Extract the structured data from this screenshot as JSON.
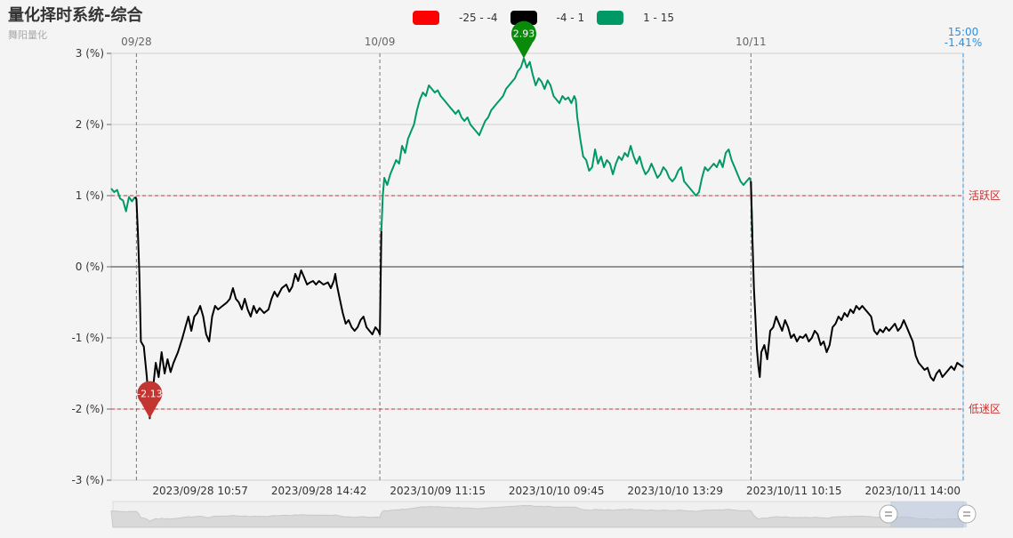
{
  "header": {
    "title": "量化择时系统-综合",
    "subtitle": "舞阳量化"
  },
  "legend": [
    {
      "label": "-25 - -4",
      "color": "#ff0000"
    },
    {
      "label": "-4 - 1",
      "color": "#000000"
    },
    {
      "label": "1 - 15",
      "color": "#009966"
    }
  ],
  "colors": {
    "positive": "#009966",
    "negative": "#000000",
    "marker_max": "#0a8a0a",
    "marker_min": "#c23531",
    "threshold": "#c23531",
    "current": "#2f8fdc"
  },
  "chart_data": {
    "type": "line",
    "title": "量化择时系统-综合",
    "subtitle": "舞阳量化",
    "ylim": [
      -3,
      3
    ],
    "y_ticks": [
      "3 (%)",
      "2 (%)",
      "1 (%)",
      "0 (%)",
      "-1 (%)",
      "-2 (%)",
      "-3 (%)"
    ],
    "x_tick_labels": [
      "2023/09/28 10:57",
      "2023/09/28 14:42",
      "2023/10/09 11:15",
      "2023/10/10 09:45",
      "2023/10/10 13:29",
      "2023/10/11 10:15",
      "2023/10/11 14:00"
    ],
    "day_labels": [
      "09/28",
      "10/09",
      "10/11"
    ],
    "current": {
      "time": "15:00",
      "value": "-1.41%"
    },
    "threshold_lines": [
      {
        "value": 1,
        "label": "活跃区"
      },
      {
        "value": -2,
        "label": "低迷区"
      }
    ],
    "markers": {
      "max": 2.93,
      "min": -2.13
    },
    "series_points": [
      [
        0,
        1.1
      ],
      [
        2,
        1.05
      ],
      [
        4,
        1.08
      ],
      [
        6,
        0.96
      ],
      [
        8,
        0.93
      ],
      [
        10,
        0.78
      ],
      [
        12,
        0.98
      ],
      [
        14,
        0.92
      ],
      [
        16,
        0.98
      ],
      [
        17,
        0.95
      ],
      [
        18,
        0.5
      ],
      [
        19,
        -0.1
      ],
      [
        20,
        -1.05
      ],
      [
        22,
        -1.12
      ],
      [
        24,
        -1.55
      ],
      [
        26,
        -2.13
      ],
      [
        28,
        -1.75
      ],
      [
        30,
        -1.35
      ],
      [
        32,
        -1.55
      ],
      [
        34,
        -1.2
      ],
      [
        36,
        -1.5
      ],
      [
        38,
        -1.3
      ],
      [
        40,
        -1.48
      ],
      [
        42,
        -1.35
      ],
      [
        45,
        -1.2
      ],
      [
        48,
        -1.0
      ],
      [
        50,
        -0.85
      ],
      [
        52,
        -0.7
      ],
      [
        54,
        -0.9
      ],
      [
        56,
        -0.7
      ],
      [
        58,
        -0.65
      ],
      [
        60,
        -0.55
      ],
      [
        62,
        -0.7
      ],
      [
        64,
        -0.95
      ],
      [
        66,
        -1.05
      ],
      [
        68,
        -0.7
      ],
      [
        70,
        -0.55
      ],
      [
        72,
        -0.6
      ],
      [
        75,
        -0.55
      ],
      [
        78,
        -0.5
      ],
      [
        80,
        -0.45
      ],
      [
        82,
        -0.3
      ],
      [
        84,
        -0.45
      ],
      [
        86,
        -0.5
      ],
      [
        88,
        -0.6
      ],
      [
        90,
        -0.45
      ],
      [
        92,
        -0.6
      ],
      [
        94,
        -0.7
      ],
      [
        96,
        -0.55
      ],
      [
        98,
        -0.65
      ],
      [
        100,
        -0.58
      ],
      [
        103,
        -0.65
      ],
      [
        106,
        -0.6
      ],
      [
        108,
        -0.45
      ],
      [
        110,
        -0.35
      ],
      [
        112,
        -0.42
      ],
      [
        115,
        -0.3
      ],
      [
        118,
        -0.25
      ],
      [
        120,
        -0.35
      ],
      [
        122,
        -0.28
      ],
      [
        124,
        -0.1
      ],
      [
        126,
        -0.2
      ],
      [
        128,
        -0.05
      ],
      [
        130,
        -0.15
      ],
      [
        132,
        -0.25
      ],
      [
        134,
        -0.22
      ],
      [
        136,
        -0.2
      ],
      [
        138,
        -0.25
      ],
      [
        140,
        -0.2
      ],
      [
        143,
        -0.25
      ],
      [
        146,
        -0.22
      ],
      [
        148,
        -0.3
      ],
      [
        150,
        -0.2
      ],
      [
        151,
        -0.1
      ],
      [
        152,
        -0.25
      ],
      [
        154,
        -0.45
      ],
      [
        156,
        -0.65
      ],
      [
        158,
        -0.8
      ],
      [
        160,
        -0.75
      ],
      [
        162,
        -0.85
      ],
      [
        164,
        -0.9
      ],
      [
        166,
        -0.85
      ],
      [
        168,
        -0.75
      ],
      [
        170,
        -0.7
      ],
      [
        172,
        -0.85
      ],
      [
        174,
        -0.9
      ],
      [
        176,
        -0.95
      ],
      [
        178,
        -0.85
      ],
      [
        180,
        -0.9
      ],
      [
        181,
        -0.95
      ],
      [
        182,
        0.5
      ],
      [
        183,
        1.0
      ],
      [
        184,
        1.25
      ],
      [
        186,
        1.15
      ],
      [
        188,
        1.3
      ],
      [
        190,
        1.4
      ],
      [
        192,
        1.5
      ],
      [
        194,
        1.45
      ],
      [
        196,
        1.7
      ],
      [
        198,
        1.6
      ],
      [
        200,
        1.8
      ],
      [
        202,
        1.9
      ],
      [
        204,
        2.0
      ],
      [
        206,
        2.2
      ],
      [
        208,
        2.35
      ],
      [
        210,
        2.45
      ],
      [
        212,
        2.4
      ],
      [
        214,
        2.55
      ],
      [
        216,
        2.5
      ],
      [
        218,
        2.45
      ],
      [
        220,
        2.48
      ],
      [
        222,
        2.4
      ],
      [
        224,
        2.35
      ],
      [
        226,
        2.3
      ],
      [
        228,
        2.25
      ],
      [
        230,
        2.2
      ],
      [
        232,
        2.15
      ],
      [
        234,
        2.2
      ],
      [
        236,
        2.1
      ],
      [
        238,
        2.05
      ],
      [
        240,
        2.1
      ],
      [
        242,
        2.0
      ],
      [
        244,
        1.95
      ],
      [
        246,
        1.9
      ],
      [
        248,
        1.85
      ],
      [
        250,
        1.95
      ],
      [
        252,
        2.05
      ],
      [
        254,
        2.1
      ],
      [
        256,
        2.2
      ],
      [
        258,
        2.25
      ],
      [
        260,
        2.3
      ],
      [
        262,
        2.35
      ],
      [
        264,
        2.4
      ],
      [
        266,
        2.5
      ],
      [
        268,
        2.55
      ],
      [
        270,
        2.6
      ],
      [
        272,
        2.65
      ],
      [
        274,
        2.75
      ],
      [
        276,
        2.8
      ],
      [
        278,
        2.93
      ],
      [
        280,
        2.8
      ],
      [
        282,
        2.88
      ],
      [
        284,
        2.7
      ],
      [
        286,
        2.55
      ],
      [
        288,
        2.65
      ],
      [
        290,
        2.6
      ],
      [
        292,
        2.5
      ],
      [
        294,
        2.62
      ],
      [
        296,
        2.55
      ],
      [
        298,
        2.4
      ],
      [
        300,
        2.35
      ],
      [
        302,
        2.3
      ],
      [
        304,
        2.4
      ],
      [
        306,
        2.35
      ],
      [
        308,
        2.38
      ],
      [
        310,
        2.3
      ],
      [
        312,
        2.4
      ],
      [
        313,
        2.35
      ],
      [
        314,
        2.1
      ],
      [
        316,
        1.8
      ],
      [
        318,
        1.55
      ],
      [
        320,
        1.5
      ],
      [
        322,
        1.35
      ],
      [
        324,
        1.4
      ],
      [
        326,
        1.65
      ],
      [
        328,
        1.45
      ],
      [
        330,
        1.55
      ],
      [
        332,
        1.4
      ],
      [
        334,
        1.5
      ],
      [
        336,
        1.45
      ],
      [
        338,
        1.3
      ],
      [
        340,
        1.45
      ],
      [
        342,
        1.55
      ],
      [
        344,
        1.5
      ],
      [
        346,
        1.6
      ],
      [
        348,
        1.55
      ],
      [
        350,
        1.7
      ],
      [
        352,
        1.55
      ],
      [
        354,
        1.45
      ],
      [
        356,
        1.55
      ],
      [
        358,
        1.4
      ],
      [
        360,
        1.3
      ],
      [
        362,
        1.35
      ],
      [
        364,
        1.45
      ],
      [
        366,
        1.35
      ],
      [
        368,
        1.25
      ],
      [
        370,
        1.3
      ],
      [
        372,
        1.4
      ],
      [
        374,
        1.35
      ],
      [
        376,
        1.25
      ],
      [
        378,
        1.2
      ],
      [
        380,
        1.25
      ],
      [
        382,
        1.35
      ],
      [
        384,
        1.4
      ],
      [
        386,
        1.2
      ],
      [
        388,
        1.15
      ],
      [
        390,
        1.1
      ],
      [
        392,
        1.05
      ],
      [
        394,
        1.0
      ],
      [
        396,
        1.05
      ],
      [
        398,
        1.25
      ],
      [
        400,
        1.4
      ],
      [
        402,
        1.35
      ],
      [
        404,
        1.4
      ],
      [
        406,
        1.45
      ],
      [
        408,
        1.4
      ],
      [
        410,
        1.5
      ],
      [
        412,
        1.4
      ],
      [
        414,
        1.6
      ],
      [
        416,
        1.65
      ],
      [
        418,
        1.5
      ],
      [
        420,
        1.4
      ],
      [
        422,
        1.3
      ],
      [
        424,
        1.2
      ],
      [
        426,
        1.15
      ],
      [
        428,
        1.2
      ],
      [
        430,
        1.25
      ],
      [
        431,
        1.2
      ],
      [
        432,
        0.4
      ],
      [
        433,
        -0.3
      ],
      [
        434,
        -0.7
      ],
      [
        435,
        -1.15
      ],
      [
        436,
        -1.4
      ],
      [
        437,
        -1.55
      ],
      [
        438,
        -1.2
      ],
      [
        440,
        -1.1
      ],
      [
        442,
        -1.3
      ],
      [
        444,
        -0.9
      ],
      [
        446,
        -0.85
      ],
      [
        448,
        -0.7
      ],
      [
        450,
        -0.8
      ],
      [
        452,
        -0.9
      ],
      [
        454,
        -0.75
      ],
      [
        456,
        -0.85
      ],
      [
        458,
        -1.0
      ],
      [
        460,
        -0.95
      ],
      [
        462,
        -1.05
      ],
      [
        464,
        -0.98
      ],
      [
        466,
        -1.0
      ],
      [
        468,
        -0.95
      ],
      [
        470,
        -1.05
      ],
      [
        472,
        -1.0
      ],
      [
        474,
        -0.9
      ],
      [
        476,
        -0.95
      ],
      [
        478,
        -1.1
      ],
      [
        480,
        -1.05
      ],
      [
        482,
        -1.2
      ],
      [
        484,
        -1.1
      ],
      [
        486,
        -0.85
      ],
      [
        488,
        -0.8
      ],
      [
        490,
        -0.7
      ],
      [
        492,
        -0.75
      ],
      [
        494,
        -0.65
      ],
      [
        496,
        -0.7
      ],
      [
        498,
        -0.6
      ],
      [
        500,
        -0.65
      ],
      [
        502,
        -0.55
      ],
      [
        504,
        -0.6
      ],
      [
        506,
        -0.55
      ],
      [
        508,
        -0.6
      ],
      [
        510,
        -0.65
      ],
      [
        512,
        -0.7
      ],
      [
        514,
        -0.9
      ],
      [
        516,
        -0.95
      ],
      [
        518,
        -0.88
      ],
      [
        520,
        -0.92
      ],
      [
        522,
        -0.85
      ],
      [
        524,
        -0.9
      ],
      [
        526,
        -0.85
      ],
      [
        528,
        -0.8
      ],
      [
        530,
        -0.9
      ],
      [
        532,
        -0.85
      ],
      [
        534,
        -0.75
      ],
      [
        536,
        -0.85
      ],
      [
        538,
        -0.95
      ],
      [
        540,
        -1.05
      ],
      [
        542,
        -1.25
      ],
      [
        544,
        -1.35
      ],
      [
        546,
        -1.4
      ],
      [
        548,
        -1.45
      ],
      [
        550,
        -1.42
      ],
      [
        552,
        -1.55
      ],
      [
        554,
        -1.6
      ],
      [
        556,
        -1.5
      ],
      [
        558,
        -1.45
      ],
      [
        560,
        -1.55
      ],
      [
        562,
        -1.5
      ],
      [
        564,
        -1.45
      ],
      [
        566,
        -1.4
      ],
      [
        568,
        -1.45
      ],
      [
        570,
        -1.35
      ],
      [
        572,
        -1.38
      ],
      [
        574,
        -1.41
      ]
    ]
  }
}
